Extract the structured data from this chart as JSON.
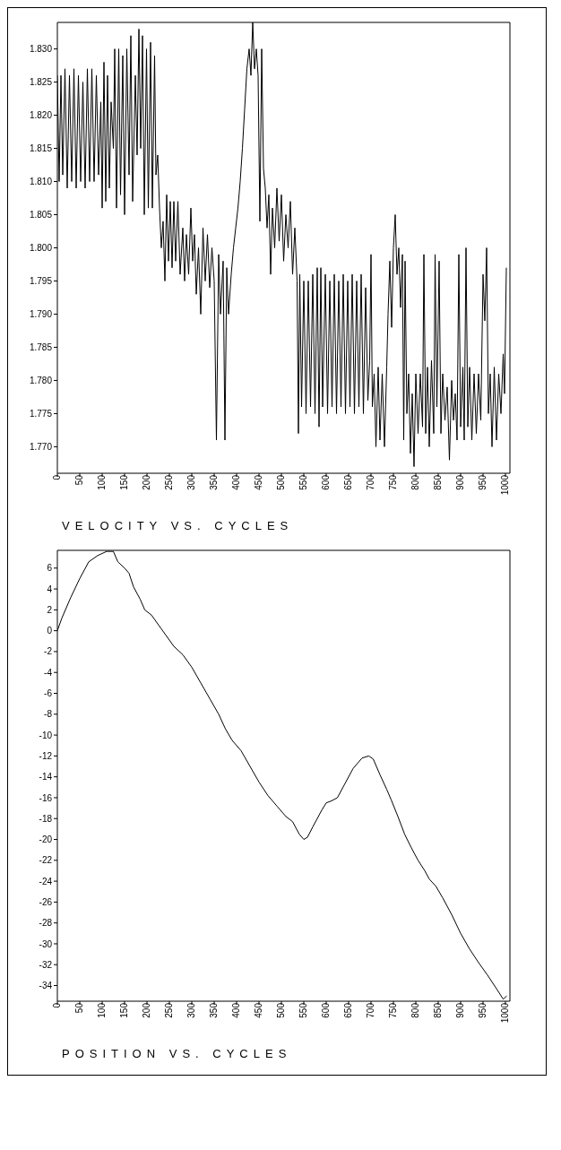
{
  "chart_data": [
    {
      "type": "line",
      "title": "VELOCITY VS. CYCLES",
      "color": "#000000",
      "xlim": [
        0,
        1010
      ],
      "xticks": [
        0,
        50,
        100,
        150,
        200,
        250,
        300,
        350,
        400,
        450,
        500,
        550,
        600,
        650,
        700,
        750,
        800,
        850,
        900,
        950,
        1000
      ],
      "ylim": [
        1.766,
        1.834
      ],
      "yticks": [
        {
          "value": 1.77,
          "label": "1.770"
        },
        {
          "value": 1.775,
          "label": "1.775"
        },
        {
          "value": 1.78,
          "label": "1.780"
        },
        {
          "value": 1.785,
          "label": "1.785"
        },
        {
          "value": 1.79,
          "label": "1.790"
        },
        {
          "value": 1.795,
          "label": "1.795"
        },
        {
          "value": 1.8,
          "label": "1.800"
        },
        {
          "value": 1.805,
          "label": "1.805"
        },
        {
          "value": 1.81,
          "label": "1.810"
        },
        {
          "value": 1.815,
          "label": "1.815"
        },
        {
          "value": 1.82,
          "label": "1.820"
        },
        {
          "value": 1.825,
          "label": "1.825"
        },
        {
          "value": 1.83,
          "label": "1.830"
        }
      ],
      "x": [
        0,
        4,
        8,
        12,
        17,
        22,
        27,
        32,
        37,
        42,
        47,
        52,
        57,
        62,
        67,
        72,
        77,
        82,
        87,
        92,
        97,
        100,
        104,
        108,
        112,
        116,
        120,
        125,
        128,
        132,
        137,
        141,
        146,
        150,
        155,
        160,
        164,
        168,
        174,
        178,
        182,
        186,
        190,
        194,
        199,
        203,
        208,
        212,
        217,
        220,
        224,
        228,
        232,
        236,
        240,
        244,
        248,
        252,
        256,
        260,
        264,
        269,
        274,
        280,
        284,
        288,
        293,
        298,
        302,
        306,
        310,
        315,
        320,
        325,
        330,
        335,
        340,
        345,
        350,
        355,
        360,
        364,
        370,
        374,
        378,
        382,
        388,
        393,
        398,
        403,
        408,
        413,
        418,
        423,
        428,
        432,
        436,
        440,
        444,
        448,
        452,
        456,
        460,
        464,
        468,
        472,
        476,
        480,
        485,
        490,
        495,
        500,
        505,
        510,
        515,
        520,
        525,
        530,
        535,
        538,
        541,
        545,
        550,
        555,
        560,
        565,
        570,
        575,
        580,
        584,
        588,
        592,
        598,
        603,
        608,
        613,
        618,
        623,
        628,
        633,
        638,
        643,
        648,
        653,
        658,
        663,
        668,
        673,
        678,
        683,
        688,
        693,
        697,
        700,
        703,
        707,
        711,
        716,
        720,
        725,
        730,
        735,
        738,
        742,
        746,
        750,
        754,
        758,
        762,
        766,
        770,
        773,
        776,
        780,
        784,
        788,
        792,
        796,
        800,
        805,
        810,
        815,
        818,
        822,
        826,
        830,
        835,
        840,
        843,
        847,
        852,
        856,
        860,
        865,
        870,
        875,
        880,
        884,
        888,
        892,
        896,
        900,
        905,
        908,
        912,
        916,
        920,
        925,
        930,
        935,
        940,
        945,
        950,
        954,
        958,
        962,
        966,
        970,
        975,
        980,
        985,
        990,
        995,
        998,
        1002
      ],
      "values": [
        1.826,
        1.81,
        1.826,
        1.811,
        1.827,
        1.809,
        1.826,
        1.81,
        1.827,
        1.809,
        1.826,
        1.81,
        1.825,
        1.809,
        1.827,
        1.81,
        1.827,
        1.81,
        1.826,
        1.811,
        1.822,
        1.806,
        1.828,
        1.807,
        1.826,
        1.809,
        1.822,
        1.815,
        1.83,
        1.806,
        1.83,
        1.808,
        1.829,
        1.805,
        1.83,
        1.811,
        1.832,
        1.807,
        1.826,
        1.814,
        1.833,
        1.815,
        1.832,
        1.805,
        1.83,
        1.806,
        1.831,
        1.806,
        1.829,
        1.811,
        1.814,
        1.806,
        1.8,
        1.804,
        1.795,
        1.808,
        1.798,
        1.807,
        1.797,
        1.807,
        1.798,
        1.807,
        1.796,
        1.803,
        1.795,
        1.802,
        1.796,
        1.806,
        1.798,
        1.802,
        1.793,
        1.8,
        1.79,
        1.803,
        1.795,
        1.802,
        1.794,
        1.8,
        1.795,
        1.771,
        1.799,
        1.79,
        1.798,
        1.771,
        1.797,
        1.79,
        1.796,
        1.8,
        1.803,
        1.806,
        1.81,
        1.815,
        1.821,
        1.827,
        1.83,
        1.826,
        1.834,
        1.827,
        1.83,
        1.826,
        1.804,
        1.83,
        1.812,
        1.809,
        1.803,
        1.808,
        1.796,
        1.806,
        1.8,
        1.809,
        1.801,
        1.808,
        1.798,
        1.805,
        1.8,
        1.807,
        1.796,
        1.803,
        1.795,
        1.772,
        1.796,
        1.776,
        1.795,
        1.775,
        1.795,
        1.776,
        1.796,
        1.775,
        1.797,
        1.773,
        1.797,
        1.776,
        1.796,
        1.775,
        1.795,
        1.776,
        1.796,
        1.775,
        1.795,
        1.776,
        1.796,
        1.775,
        1.795,
        1.776,
        1.796,
        1.775,
        1.795,
        1.776,
        1.796,
        1.775,
        1.794,
        1.777,
        1.783,
        1.799,
        1.776,
        1.781,
        1.77,
        1.782,
        1.771,
        1.781,
        1.77,
        1.782,
        1.79,
        1.798,
        1.788,
        1.8,
        1.805,
        1.796,
        1.8,
        1.791,
        1.799,
        1.771,
        1.798,
        1.775,
        1.781,
        1.769,
        1.778,
        1.767,
        1.781,
        1.772,
        1.781,
        1.773,
        1.799,
        1.772,
        1.782,
        1.77,
        1.783,
        1.772,
        1.799,
        1.776,
        1.798,
        1.772,
        1.781,
        1.774,
        1.779,
        1.768,
        1.78,
        1.774,
        1.778,
        1.771,
        1.799,
        1.773,
        1.782,
        1.771,
        1.8,
        1.773,
        1.782,
        1.771,
        1.781,
        1.772,
        1.781,
        1.774,
        1.796,
        1.789,
        1.8,
        1.775,
        1.781,
        1.77,
        1.782,
        1.771,
        1.781,
        1.775,
        1.784,
        1.778,
        1.797
      ]
    },
    {
      "type": "line",
      "title": "POSITION VS. CYCLES",
      "color": "#000000",
      "xlim": [
        0,
        1010
      ],
      "xticks": [
        0,
        50,
        100,
        150,
        200,
        250,
        300,
        350,
        400,
        450,
        500,
        550,
        600,
        650,
        700,
        750,
        800,
        850,
        900,
        950,
        1000
      ],
      "ylim": [
        -35.5,
        7.7
      ],
      "yticks": [
        -34,
        -32,
        -30,
        -28,
        -26,
        -24,
        -22,
        -20,
        -18,
        -16,
        -14,
        -12,
        -10,
        -8,
        -6,
        -4,
        -2,
        0,
        2,
        4,
        6
      ],
      "x": [
        0,
        10,
        30,
        50,
        70,
        90,
        110,
        125,
        135,
        150,
        160,
        170,
        185,
        195,
        210,
        230,
        260,
        280,
        300,
        320,
        340,
        360,
        375,
        390,
        410,
        430,
        450,
        470,
        490,
        510,
        525,
        540,
        550,
        558,
        570,
        590,
        600,
        612,
        625,
        640,
        660,
        680,
        695,
        705,
        720,
        735,
        745,
        760,
        775,
        790,
        805,
        820,
        830,
        845,
        860,
        880,
        900,
        920,
        940,
        960,
        980,
        995,
        1003
      ],
      "values": [
        0,
        1.2,
        3.2,
        5.0,
        6.6,
        7.2,
        7.6,
        7.6,
        6.6,
        6.0,
        5.5,
        4.2,
        3.0,
        2.0,
        1.5,
        0.3,
        -1.5,
        -2.3,
        -3.5,
        -5.0,
        -6.5,
        -8.0,
        -9.4,
        -10.5,
        -11.5,
        -13.0,
        -14.5,
        -15.8,
        -16.8,
        -17.8,
        -18.3,
        -19.5,
        -20.0,
        -19.8,
        -18.8,
        -17.2,
        -16.5,
        -16.3,
        -16.0,
        -14.8,
        -13.2,
        -12.2,
        -12.0,
        -12.3,
        -13.8,
        -15.2,
        -16.2,
        -17.8,
        -19.5,
        -20.8,
        -22.0,
        -23.0,
        -23.8,
        -24.5,
        -25.6,
        -27.2,
        -29.0,
        -30.5,
        -31.8,
        -33.0,
        -34.3,
        -35.3,
        -35.0
      ]
    }
  ]
}
